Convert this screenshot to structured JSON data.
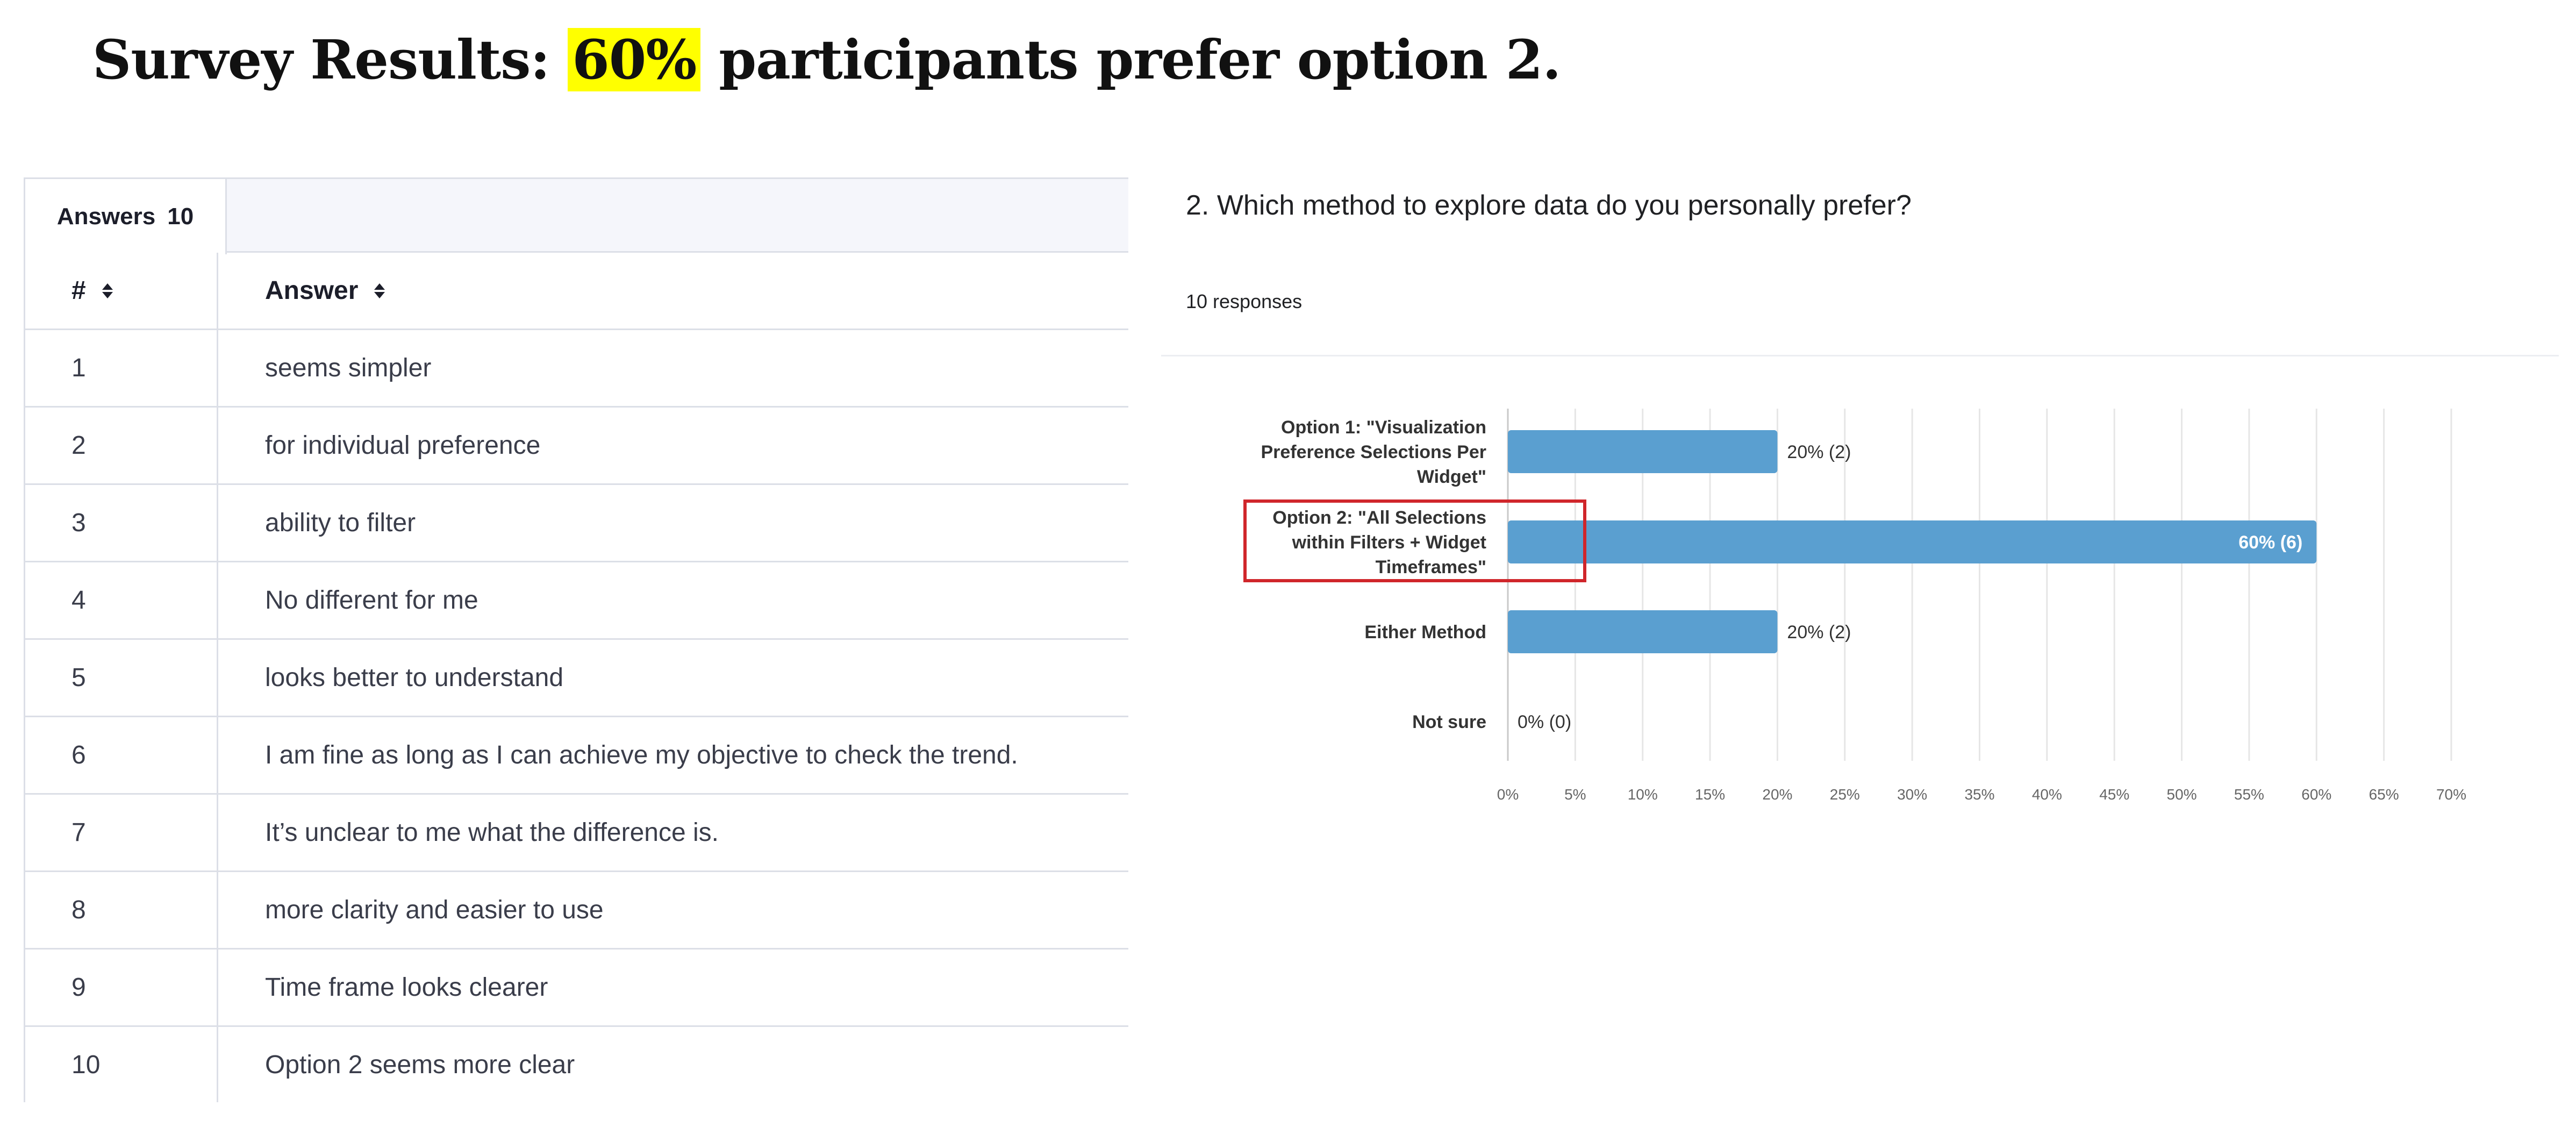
{
  "headline": {
    "prefix": "Survey Results: ",
    "highlight": "60%",
    "suffix": " participants prefer option 2."
  },
  "answers_table": {
    "tab_label": "Answers",
    "tab_count": "10",
    "columns": [
      "#",
      "Answer"
    ],
    "rows": [
      {
        "num": "1",
        "answer": "seems simpler"
      },
      {
        "num": "2",
        "answer": "for individual preference"
      },
      {
        "num": "3",
        "answer": "ability to filter"
      },
      {
        "num": "4",
        "answer": "No different for me"
      },
      {
        "num": "5",
        "answer": "looks better to understand"
      },
      {
        "num": "6",
        "answer": "I am fine as long as I can achieve my objective to check the trend."
      },
      {
        "num": "7",
        "answer": "It’s unclear to me what the difference is."
      },
      {
        "num": "8",
        "answer": "more clarity and easier to use"
      },
      {
        "num": "9",
        "answer": "Time frame looks clearer"
      },
      {
        "num": "10",
        "answer": "Option 2 seems more clear"
      }
    ]
  },
  "survey_chart": {
    "question": "2. Which method to explore data do you personally prefer?",
    "responses": "10 responses"
  },
  "chart_data": {
    "type": "bar",
    "orientation": "horizontal",
    "categories": [
      [
        "Option 1: \"Visualization",
        "Preference Selections Per",
        "Widget\""
      ],
      [
        "Option 2: \"All Selections",
        "within Filters + Widget",
        "Timeframes\""
      ],
      [
        "Either Method"
      ],
      [
        "Not sure"
      ]
    ],
    "values": [
      20,
      60,
      20,
      0
    ],
    "value_labels": [
      "20% (2)",
      "60% (6)",
      "20% (2)",
      "0% (0)"
    ],
    "highlighted_category": 1,
    "xlim": [
      0,
      70
    ],
    "x_ticks": [
      "0%",
      "5%",
      "10%",
      "15%",
      "20%",
      "25%",
      "30%",
      "35%",
      "40%",
      "45%",
      "50%",
      "55%",
      "60%",
      "65%",
      "70%"
    ],
    "grid": "vertical",
    "colors": {
      "bar": "#5a9fd0",
      "highlight_box": "#d0262b",
      "grid": "#e6e6e6"
    }
  }
}
